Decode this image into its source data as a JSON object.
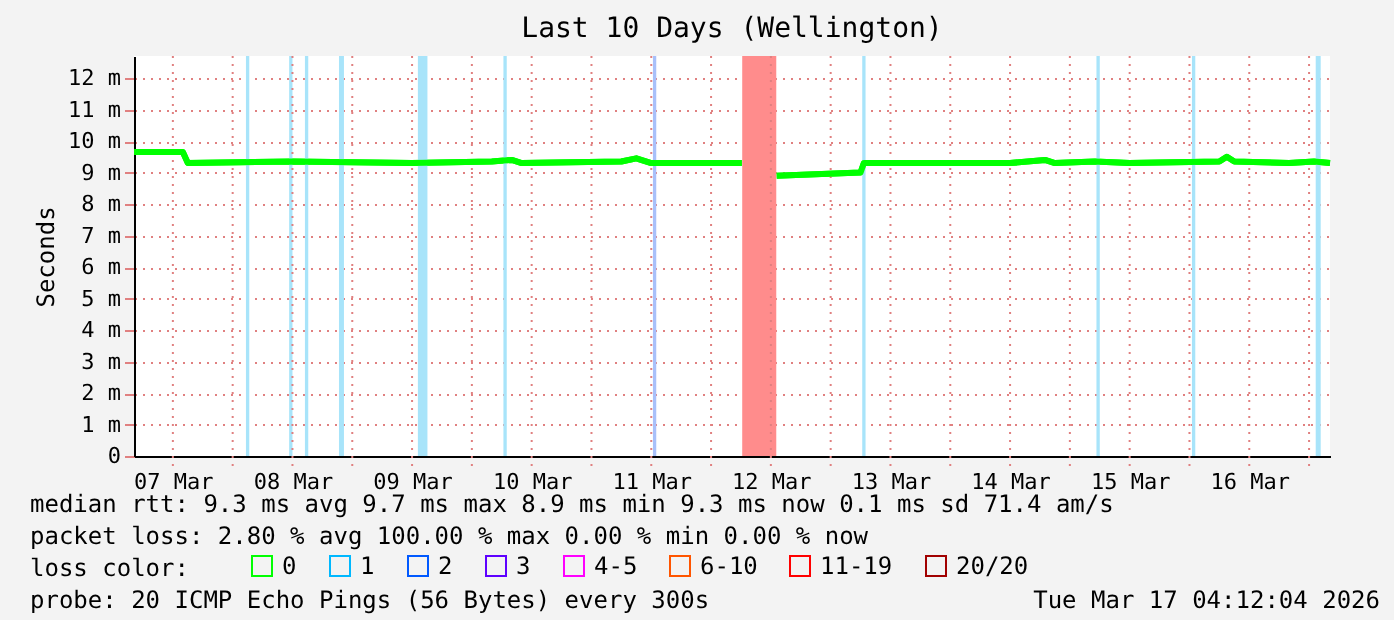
{
  "chart_data": {
    "type": "line",
    "title": "Last 10 Days (Wellington)",
    "ylabel": "Seconds",
    "xlim": [
      "2026-03-07T04:12",
      "2026-03-17T04:12"
    ],
    "xticks": [
      {
        "value": "2026-03-07T12:00",
        "label": "07 Mar"
      },
      {
        "value": "2026-03-08T00:00",
        "label": null
      },
      {
        "value": "2026-03-08T12:00",
        "label": "08 Mar"
      },
      {
        "value": "2026-03-09T00:00",
        "label": null
      },
      {
        "value": "2026-03-09T12:00",
        "label": "09 Mar"
      },
      {
        "value": "2026-03-10T00:00",
        "label": null
      },
      {
        "value": "2026-03-10T12:00",
        "label": "10 Mar"
      },
      {
        "value": "2026-03-11T00:00",
        "label": null
      },
      {
        "value": "2026-03-11T12:00",
        "label": "11 Mar"
      },
      {
        "value": "2026-03-12T00:00",
        "label": null
      },
      {
        "value": "2026-03-12T12:00",
        "label": "12 Mar"
      },
      {
        "value": "2026-03-13T00:00",
        "label": null
      },
      {
        "value": "2026-03-13T12:00",
        "label": "13 Mar"
      },
      {
        "value": "2026-03-14T00:00",
        "label": null
      },
      {
        "value": "2026-03-14T12:00",
        "label": "14 Mar"
      },
      {
        "value": "2026-03-15T00:00",
        "label": null
      },
      {
        "value": "2026-03-15T12:00",
        "label": "15 Mar"
      },
      {
        "value": "2026-03-16T00:00",
        "label": null
      },
      {
        "value": "2026-03-16T12:00",
        "label": "16 Mar"
      },
      {
        "value": "2026-03-17T00:00",
        "label": null
      }
    ],
    "ylim": [
      0,
      12.7
    ],
    "yticks": [
      0,
      {
        "value": 1,
        "label": "1 m"
      },
      {
        "value": 2,
        "label": "2 m"
      },
      {
        "value": 3,
        "label": "3 m"
      },
      {
        "value": 4,
        "label": "4 m"
      },
      {
        "value": 5,
        "label": "5 m"
      },
      {
        "value": 6,
        "label": "6 m"
      },
      {
        "value": 7,
        "label": "7 m"
      },
      {
        "value": 8,
        "label": "8 m"
      },
      {
        "value": 9,
        "label": "9 m"
      },
      {
        "value": 10,
        "label": "10 m"
      },
      {
        "value": 11,
        "label": "11 m"
      },
      {
        "value": 12,
        "label": "12 m"
      }
    ],
    "grid": true,
    "legend": "bottom",
    "legend_title": "loss color:",
    "line_style": "solid",
    "marker": "none",
    "series": [
      {
        "name": "0",
        "color": "#00ff00",
        "x": [
          "2026-03-07T04:12",
          "2026-03-07T14:00",
          "2026-03-07T15:00",
          "2026-03-08T12:00",
          "2026-03-09T12:00",
          "2026-03-10T04:00",
          "2026-03-10T08:00",
          "2026-03-10T10:00",
          "2026-03-11T06:00",
          "2026-03-11T09:00",
          "2026-03-11T12:00",
          "2026-03-12T06:10",
          "2026-03-12T09:00",
          "2026-03-12T13:10",
          "2026-03-13T06:00",
          "2026-03-13T06:40",
          "2026-03-14T12:00",
          "2026-03-14T19:00",
          "2026-03-14T21:00",
          "2026-03-15T05:00",
          "2026-03-15T12:00",
          "2026-03-16T06:00",
          "2026-03-16T07:30",
          "2026-03-16T09:00",
          "2026-03-16T20:00",
          "2026-03-17T01:00",
          "2026-03-17T04:12"
        ],
        "values": [
          9.65,
          9.65,
          9.3,
          9.35,
          9.3,
          9.35,
          9.4,
          9.3,
          9.35,
          9.45,
          9.3,
          9.3,
          null,
          8.9,
          9.0,
          9.3,
          9.3,
          9.4,
          9.3,
          9.35,
          9.3,
          9.35,
          9.5,
          9.35,
          9.3,
          9.35,
          9.3
        ]
      },
      {
        "name": "1",
        "color": "#00b8ff"
      },
      {
        "name": "2",
        "color": "#0059ff"
      },
      {
        "name": "3",
        "color": "#5e00ff"
      },
      {
        "name": "4-5",
        "color": "#ff00ff"
      },
      {
        "name": "6-10",
        "color": "#ff5500"
      },
      {
        "name": "11-19",
        "color": "#ff0000"
      },
      {
        "name": "20/20",
        "color": "#a10000"
      }
    ],
    "bands": [
      {
        "axis": "x",
        "from": "2026-03-08T02:40",
        "to": "2026-03-08T03:20",
        "color": "#a8e4fa"
      },
      {
        "axis": "x",
        "from": "2026-03-08T11:20",
        "to": "2026-03-08T12:00",
        "color": "#a8e4fa"
      },
      {
        "axis": "x",
        "from": "2026-03-08T14:30",
        "to": "2026-03-08T15:10",
        "color": "#a8e4fa"
      },
      {
        "axis": "x",
        "from": "2026-03-08T21:20",
        "to": "2026-03-08T22:20",
        "color": "#a8e4fa"
      },
      {
        "axis": "x",
        "from": "2026-03-09T13:10",
        "to": "2026-03-09T15:05",
        "color": "#a8e4fa"
      },
      {
        "axis": "x",
        "from": "2026-03-10T06:20",
        "to": "2026-03-10T07:00",
        "color": "#a8e4fa"
      },
      {
        "axis": "x",
        "from": "2026-03-11T12:20",
        "to": "2026-03-11T13:00",
        "color": "#a8c0fa"
      },
      {
        "axis": "x",
        "from": "2026-03-12T06:15",
        "to": "2026-03-12T13:05",
        "color": "#ff8c8c"
      },
      {
        "axis": "x",
        "from": "2026-03-13T06:20",
        "to": "2026-03-13T07:00",
        "color": "#a8e4fa"
      },
      {
        "axis": "x",
        "from": "2026-03-15T05:20",
        "to": "2026-03-15T06:00",
        "color": "#a8e4fa"
      },
      {
        "axis": "x",
        "from": "2026-03-16T00:30",
        "to": "2026-03-16T01:10",
        "color": "#a8e4fa"
      },
      {
        "axis": "x",
        "from": "2026-03-17T01:20",
        "to": "2026-03-17T02:20",
        "color": "#a8e4fa"
      }
    ],
    "annotations": [
      "median rtt:  9.3 ms avg   9.7 ms max   8.9 ms min   9.3 ms now   0.1 ms sd  71.4    am/s",
      "packet loss: 2.80 % avg   100.00 % max   0.00 % min   0.00 % now",
      "probe:       20 ICMP Echo Pings (56 Bytes) every 300s",
      "Tue Mar 17 04:12:04 2026"
    ]
  }
}
